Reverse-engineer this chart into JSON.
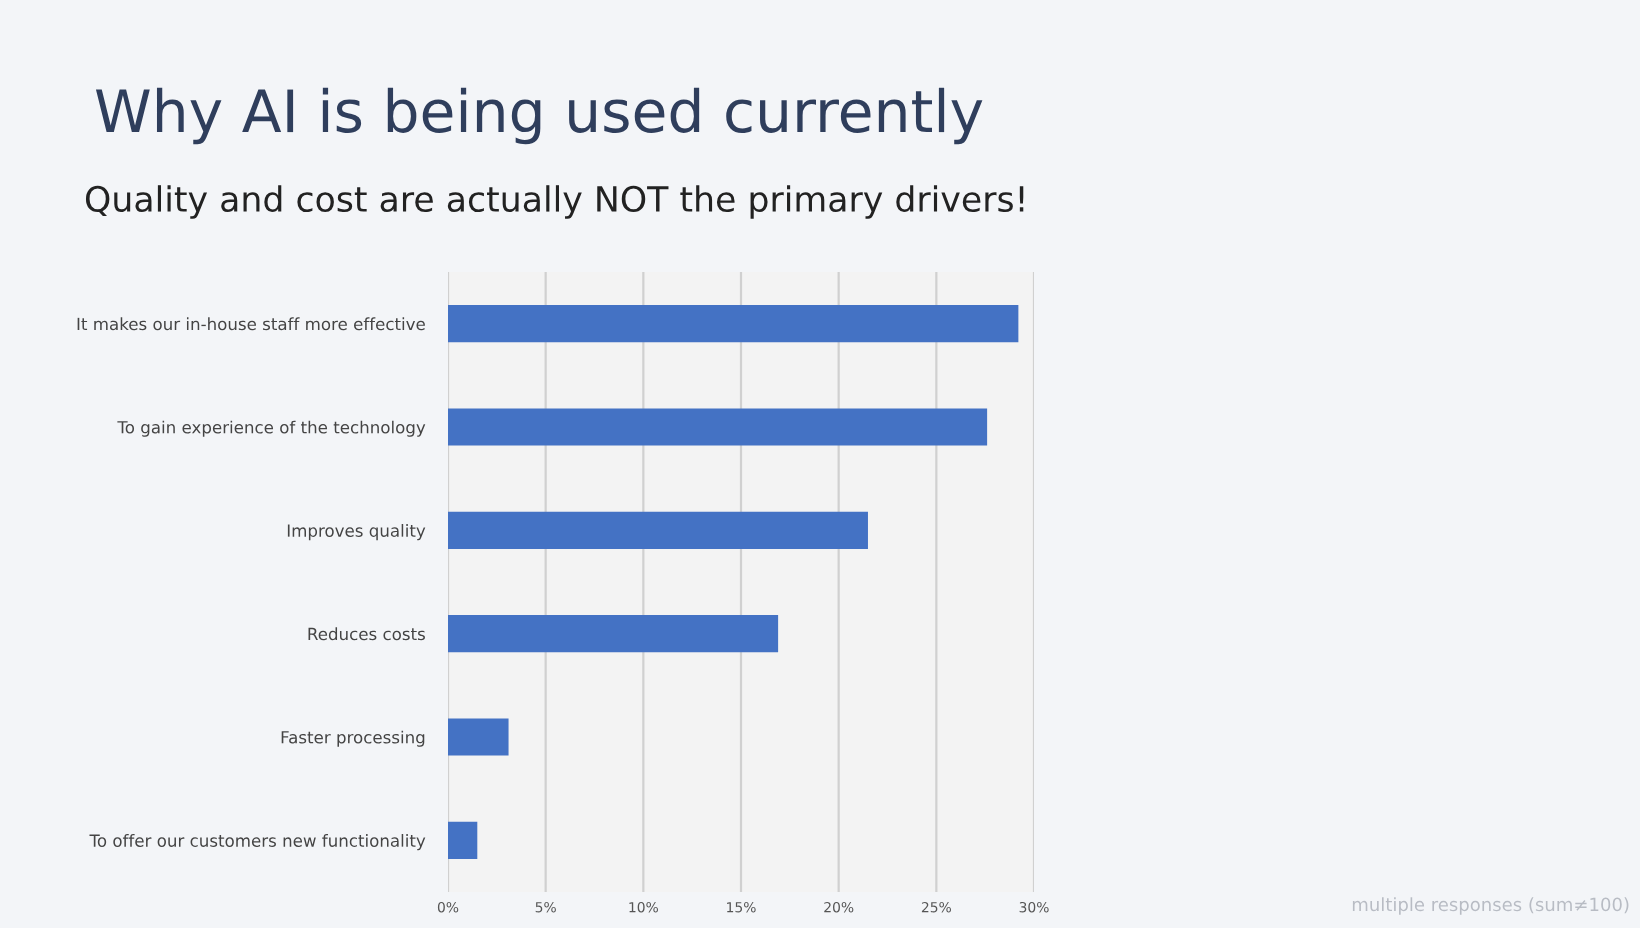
{
  "chart_data": {
    "type": "bar",
    "orientation": "horizontal",
    "title": "Why AI is being used currently",
    "subtitle": "Quality and cost are actually NOT the primary drivers!",
    "categories": [
      "It makes our in-house staff more effective",
      "To gain experience of the technology",
      "Improves quality",
      "Reduces costs",
      "Faster processing",
      "To offer our customers new functionality"
    ],
    "values": [
      29.2,
      27.6,
      21.5,
      16.9,
      3.1,
      1.5
    ],
    "color": "#4472c4",
    "xlim": [
      0,
      30
    ],
    "xticks": [
      {
        "value": 0,
        "label": "0%"
      },
      {
        "value": 5,
        "label": "5%"
      },
      {
        "value": 10,
        "label": "10%"
      },
      {
        "value": 15,
        "label": "15%"
      },
      {
        "value": 20,
        "label": "20%"
      },
      {
        "value": 25,
        "label": "25%"
      },
      {
        "value": 30,
        "label": "30%"
      }
    ],
    "grid": "x",
    "annotations": [
      "multiple responses (sum≠100)"
    ]
  }
}
